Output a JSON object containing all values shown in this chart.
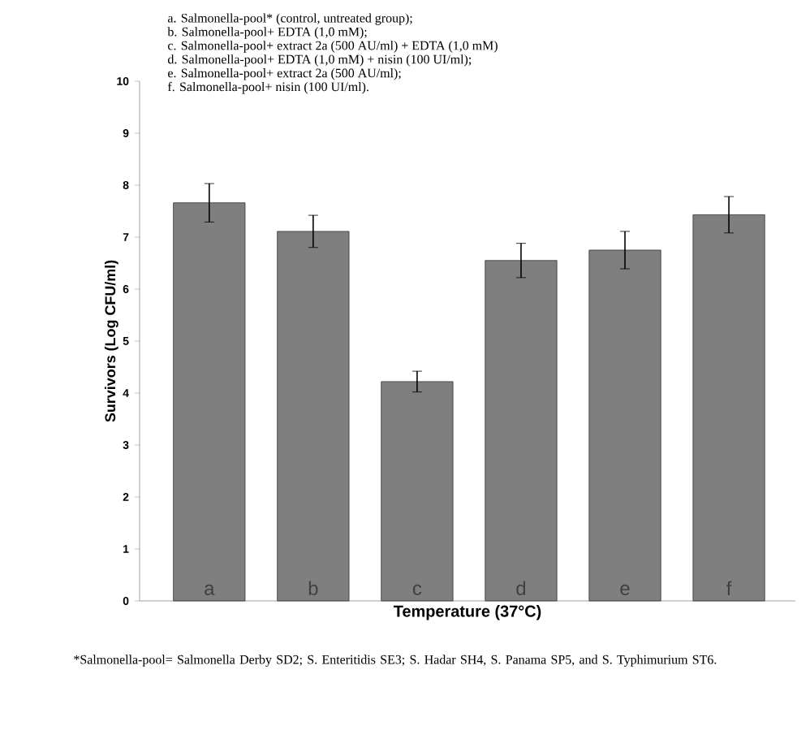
{
  "chart_data": {
    "type": "bar",
    "categories": [
      "a",
      "b",
      "c",
      "d",
      "e",
      "f"
    ],
    "values": [
      7.66,
      7.11,
      4.22,
      6.55,
      6.75,
      7.43
    ],
    "errors": [
      0.37,
      0.31,
      0.2,
      0.33,
      0.36,
      0.35
    ],
    "color": "#7f7f7f",
    "xlabel": "Temperature (37°C)",
    "ylabel": "Survivors (Log CFU/ml)",
    "ylim": [
      0,
      10
    ],
    "yticks": [
      0,
      1,
      2,
      3,
      4,
      5,
      6,
      7,
      8,
      9,
      10
    ],
    "grid": false,
    "annotations": [
      "a. Salmonella-pool* (control, untreated group);",
      "b. Salmonella-pool+ EDTA (1,0 mM);",
      "c. Salmonella-pool+ extract 2a (500 AU/ml) + EDTA (1,0 mM)",
      "d. Salmonella-pool+ EDTA (1,0 mM) + nisin (100 UI/ml);",
      "e. Salmonella-pool+ extract 2a (500 AU/ml);",
      "f. Salmonella-pool+ nisin (100 UI/ml).",
      "*Salmonella-pool= Salmonella Derby SD2; S. Enteritidis SE3; S. Hadar SH4, S. Panama SP5, and S. Typhimurium ST6."
    ]
  }
}
